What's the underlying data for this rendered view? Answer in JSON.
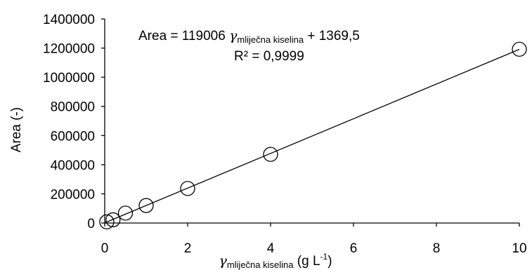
{
  "chart_data": {
    "type": "scatter",
    "title": "",
    "xlim": [
      0,
      10
    ],
    "ylim": [
      0,
      1400000
    ],
    "x_ticks": [
      0,
      2,
      4,
      6,
      8,
      10
    ],
    "y_ticks": [
      0,
      200000,
      400000,
      600000,
      800000,
      1000000,
      1200000,
      1400000
    ],
    "x_tick_labels": [
      "0",
      "2",
      "4",
      "6",
      "8",
      "10"
    ],
    "y_tick_labels": [
      "0",
      "200000",
      "400000",
      "600000",
      "800000",
      "1000000",
      "1200000",
      "1400000"
    ],
    "xlabel": {
      "symbol": "γ",
      "subscript": "mliječna kiselina",
      "unit_prefix": "(g L",
      "unit_superscript": "-1",
      "unit_suffix": ")"
    },
    "ylabel": "Area (-)",
    "grid": false,
    "legend": "none",
    "marker": "open-circle",
    "series": [
      {
        "x": [
          0.05,
          0.2,
          0.5,
          1,
          2,
          4,
          10
        ],
        "y": [
          8000,
          22000,
          68000,
          120000,
          237000,
          471000,
          1192000
        ]
      }
    ],
    "trendline": {
      "type": "linear",
      "slope": 119006,
      "intercept": 1369.5,
      "x_range": [
        0,
        10
      ]
    },
    "annotations": {
      "equation": {
        "prefix": "Area = 119006 ",
        "symbol": "γ",
        "subscript": "mliječna kiselina",
        "suffix": " + 1369,5"
      },
      "r_squared": "R² = 0,9999"
    },
    "colors": {
      "axis": "#000000",
      "marker_stroke": "#000000",
      "trendline": "#000000"
    }
  }
}
